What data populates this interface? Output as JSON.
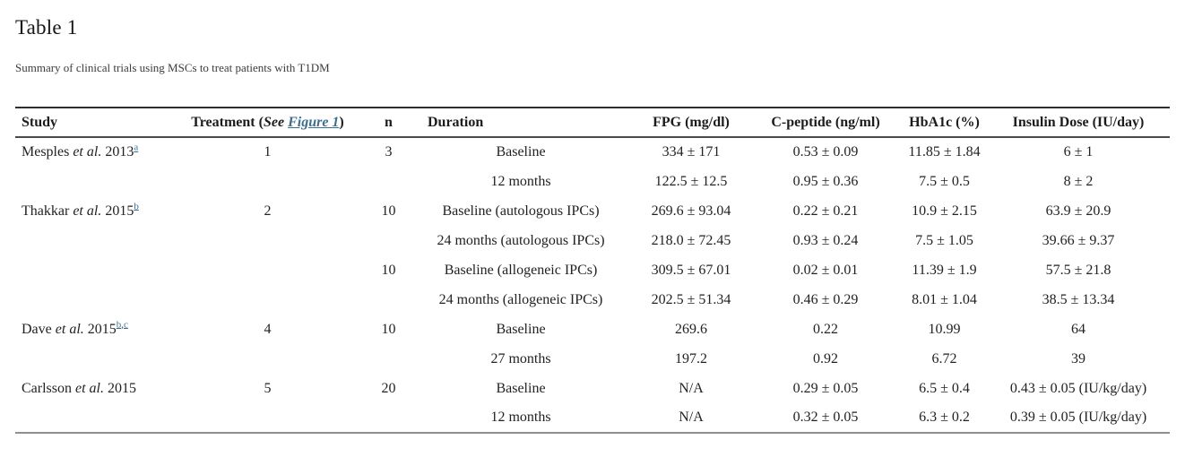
{
  "page": {
    "title": "Table 1",
    "caption": "Summary of clinical trials using MSCs to treat patients with T1DM"
  },
  "colors": {
    "link": "#3c6e8f"
  },
  "table": {
    "headers": {
      "study": "Study",
      "treatment_prefix": "Treatment (",
      "treatment_see": "See ",
      "treatment_link": "Figure 1",
      "treatment_suffix": ")",
      "n": "n",
      "duration": "Duration",
      "fpg": "FPG (mg/dl)",
      "c_peptide": "C-peptide (ng/ml)",
      "hba1c": "HbA1c (%)",
      "insulin": "Insulin Dose (IU/day)"
    },
    "rows": [
      {
        "study": {
          "name": "Mesples",
          "etal": " et al. ",
          "year": "2013",
          "refs": [
            "a"
          ]
        },
        "treatment": "1",
        "n": "3",
        "duration": "Baseline",
        "fpg": "334 ± 171",
        "c_peptide": "0.53 ± 0.09",
        "hba1c": "11.85 ± 1.84",
        "insulin": "6 ± 1"
      },
      {
        "study": null,
        "treatment": "",
        "n": "",
        "duration": "12 months",
        "fpg": "122.5 ± 12.5",
        "c_peptide": "0.95 ± 0.36",
        "hba1c": "7.5 ± 0.5",
        "insulin": "8 ± 2"
      },
      {
        "study": {
          "name": "Thakkar",
          "etal": " et al. ",
          "year": "2015",
          "refs": [
            "b"
          ]
        },
        "treatment": "2",
        "n": "10",
        "duration": "Baseline (autologous IPCs)",
        "fpg": "269.6 ± 93.04",
        "c_peptide": "0.22 ± 0.21",
        "hba1c": "10.9 ± 2.15",
        "insulin": "63.9 ± 20.9"
      },
      {
        "study": null,
        "treatment": "",
        "n": "",
        "duration": "24 months (autologous IPCs)",
        "fpg": "218.0 ± 72.45",
        "c_peptide": "0.93 ± 0.24",
        "hba1c": "7.5 ± 1.05",
        "insulin": "39.66 ± 9.37"
      },
      {
        "study": null,
        "treatment": "",
        "n": "10",
        "duration": "Baseline (allogeneic IPCs)",
        "fpg": "309.5 ± 67.01",
        "c_peptide": "0.02 ± 0.01",
        "hba1c": "11.39 ± 1.9",
        "insulin": "57.5 ± 21.8"
      },
      {
        "study": null,
        "treatment": "",
        "n": "",
        "duration": "24 months (allogeneic IPCs)",
        "fpg": "202.5 ± 51.34",
        "c_peptide": "0.46 ± 0.29",
        "hba1c": "8.01 ± 1.04",
        "insulin": "38.5 ± 13.34"
      },
      {
        "study": {
          "name": "Dave",
          "etal": " et al. ",
          "year": "2015",
          "refs": [
            "b",
            "c"
          ]
        },
        "treatment": "4",
        "n": "10",
        "duration": "Baseline",
        "fpg": "269.6",
        "c_peptide": "0.22",
        "hba1c": "10.99",
        "insulin": "64"
      },
      {
        "study": null,
        "treatment": "",
        "n": "",
        "duration": "27 months",
        "fpg": "197.2",
        "c_peptide": "0.92",
        "hba1c": "6.72",
        "insulin": "39"
      },
      {
        "study": {
          "name": "Carlsson",
          "etal": " et al. ",
          "year": "2015",
          "refs": []
        },
        "treatment": "5",
        "n": "20",
        "duration": "Baseline",
        "fpg": "N/A",
        "c_peptide": "0.29 ± 0.05",
        "hba1c": "6.5 ± 0.4",
        "insulin": "0.43 ± 0.05 (IU/kg/day)"
      },
      {
        "study": null,
        "treatment": "",
        "n": "",
        "duration": "12 months",
        "fpg": "N/A",
        "c_peptide": "0.32 ± 0.05",
        "hba1c": "6.3 ± 0.2",
        "insulin": "0.39 ± 0.05 (IU/kg/day)"
      }
    ]
  }
}
